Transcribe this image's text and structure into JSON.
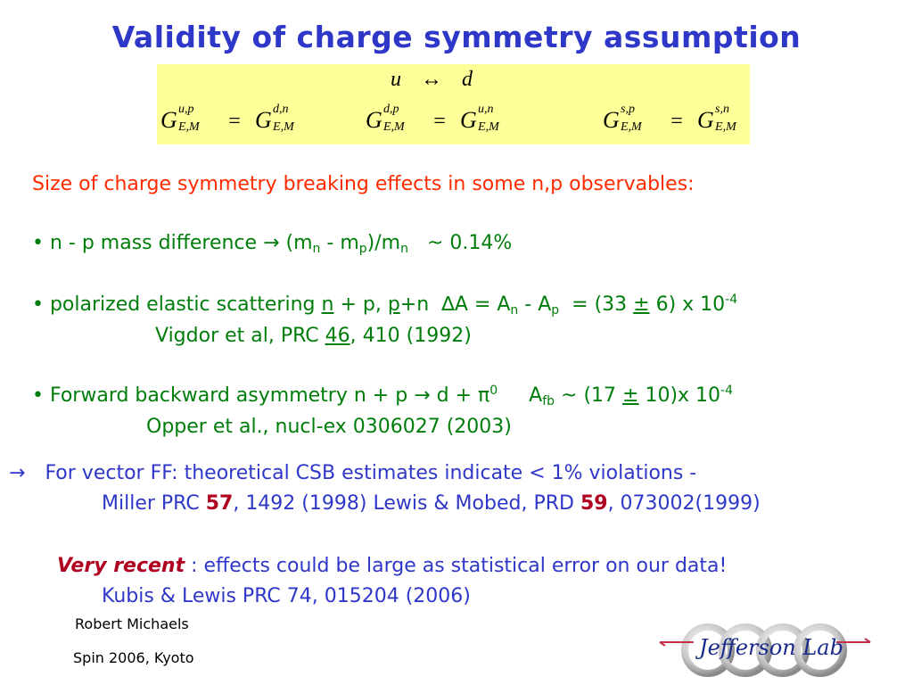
{
  "title": "Validity of charge symmetry assumption",
  "equation_box": {
    "u": "u",
    "arrow": "↔",
    "d": "d",
    "eq1": {
      "lhs_sup": "u,p",
      "lhs_sub": "E,M",
      "rhs_sup": "d,n",
      "rhs_sub": "E,M"
    },
    "eq2": {
      "lhs_sup": "d,p",
      "lhs_sub": "E,M",
      "rhs_sup": "u,n",
      "rhs_sub": "E,M"
    },
    "eq3": {
      "lhs_sup": "s,p",
      "lhs_sub": "E,M",
      "rhs_sup": "s,n",
      "rhs_sub": "E,M"
    },
    "G": "G",
    "equals": "="
  },
  "heading": "Size of charge symmetry breaking effects in some n,p observables:",
  "bullet1": {
    "prefix": "• n - p mass difference ",
    "arrow": "→",
    "part1": " (m",
    "sub1": "n",
    "part2": " - m",
    "sub2": "p",
    "part3": ")/m",
    "sub3": "n",
    "value": "   ~ 0.14%"
  },
  "bullet2": {
    "prefix": "• polarized elastic scattering ",
    "n_underline": "n",
    "mid": " + p, ",
    "p_underline": "p",
    "rest": "+n  ",
    "delta": "∆",
    "a_eq": "A = A",
    "sub_n": "n",
    "minus": " - A",
    "sub_p": "p",
    "value": "  = (33 ",
    "pm": "±",
    "value2": " 6) x 10",
    "exp": "-4",
    "ref_pre": "Vigdor et al, PRC ",
    "ref_vol": "46",
    "ref_post": ", 410 (1992)"
  },
  "bullet3": {
    "prefix": "• Forward backward asymmetry n + p ",
    "arrow": "→",
    "mid": " d + ",
    "pi": "π",
    "pi_sup": "0",
    "afb": "     A",
    "afb_sub": "fb",
    "value": " ~ (17 ",
    "pm": "±",
    "value2": " 10)x 10",
    "exp": "-4",
    "ref": "Opper et al., nucl-ex 0306027 (2003)"
  },
  "vector_ff": {
    "arrow": "→",
    "line1": "For vector FF:  theoretical CSB estimates indicate < 1% violations -",
    "line2_pre": "Miller PRC ",
    "vol1": "57",
    "line2_mid": ", 1492 (1998)  Lewis & Mobed, PRD ",
    "vol2": "59",
    "line2_post": ", 073002(1999)"
  },
  "very_recent": {
    "label": "Very recent",
    "text": " : effects could be large as statistical error on our data!",
    "ref": "Kubis & Lewis   PRC 74, 015204 (2006)"
  },
  "footer": {
    "author": "Robert  Michaels",
    "conference": "Spin 2006,  Kyoto"
  },
  "logo": {
    "text": "Jefferson Lab"
  }
}
